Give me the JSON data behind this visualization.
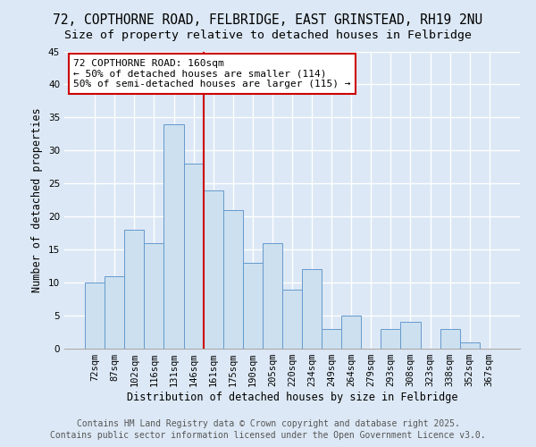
{
  "title": "72, COPTHORNE ROAD, FELBRIDGE, EAST GRINSTEAD, RH19 2NU",
  "subtitle": "Size of property relative to detached houses in Felbridge",
  "xlabel": "Distribution of detached houses by size in Felbridge",
  "ylabel": "Number of detached properties",
  "categories": [
    "72sqm",
    "87sqm",
    "102sqm",
    "116sqm",
    "131sqm",
    "146sqm",
    "161sqm",
    "175sqm",
    "190sqm",
    "205sqm",
    "220sqm",
    "234sqm",
    "249sqm",
    "264sqm",
    "279sqm",
    "293sqm",
    "308sqm",
    "323sqm",
    "338sqm",
    "352sqm",
    "367sqm"
  ],
  "values": [
    10,
    11,
    18,
    16,
    34,
    28,
    24,
    21,
    13,
    16,
    9,
    12,
    3,
    5,
    0,
    3,
    4,
    0,
    3,
    1,
    0
  ],
  "bar_color": "#cce0f0",
  "bar_edgecolor": "#6699cc",
  "bar_width": 1.0,
  "ylim": [
    0,
    45
  ],
  "yticks": [
    0,
    5,
    10,
    15,
    20,
    25,
    30,
    35,
    40,
    45
  ],
  "vline_x": 5.5,
  "vline_color": "#cc0000",
  "annotation_text": "72 COPTHORNE ROAD: 160sqm\n← 50% of detached houses are smaller (114)\n50% of semi-detached houses are larger (115) →",
  "annotation_box_edgecolor": "#cc0000",
  "footer1": "Contains HM Land Registry data © Crown copyright and database right 2025.",
  "footer2": "Contains public sector information licensed under the Open Government Licence v3.0.",
  "background_color": "#dce8f5",
  "plot_background": "#dce8f5",
  "grid_color": "#ffffff",
  "title_fontsize": 10.5,
  "subtitle_fontsize": 9.5,
  "axis_fontsize": 8.5,
  "tick_fontsize": 7.5,
  "annotation_fontsize": 8,
  "footer_fontsize": 7
}
